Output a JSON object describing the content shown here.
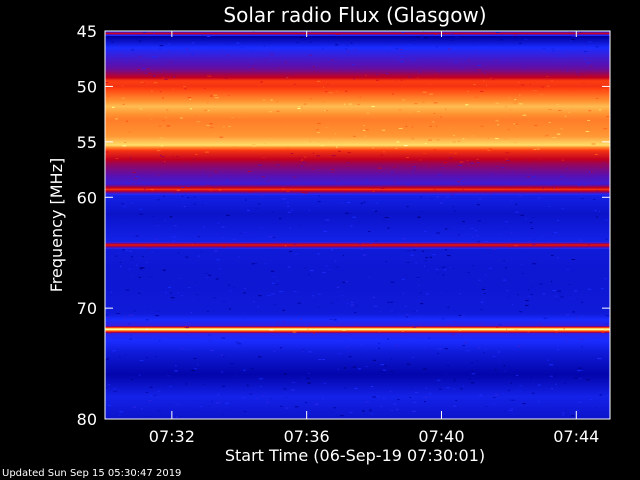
{
  "chart_data": {
    "type": "heatmap",
    "title": "Solar radio Flux (Glasgow)",
    "xlabel": "Start Time (06-Sep-19 07:30:01)",
    "ylabel": "Frequency [MHz]",
    "x_range": [
      "07:30:01",
      "07:45:00"
    ],
    "x_ticks": [
      "07:32",
      "07:36",
      "07:40",
      "07:44"
    ],
    "y_range": [
      45,
      80
    ],
    "y_axis_direction": "increasing downward",
    "y_ticks": [
      45,
      50,
      55,
      60,
      70,
      80
    ],
    "y_tick_labels": [
      "45",
      "50",
      "55",
      "60",
      "70",
      "80"
    ],
    "colormap": [
      "#000000",
      "#0000a0",
      "#1a2cff",
      "#5a10b0",
      "#c00020",
      "#ff4010",
      "#ff9030",
      "#ffff80",
      "#ffffff"
    ],
    "frequency_profile": [
      {
        "mhz": 45.0,
        "level": 0.1
      },
      {
        "mhz": 45.2,
        "level": 0.55
      },
      {
        "mhz": 45.5,
        "level": 0.12
      },
      {
        "mhz": 46.5,
        "level": 0.25
      },
      {
        "mhz": 47.5,
        "level": 0.33
      },
      {
        "mhz": 48.5,
        "level": 0.4
      },
      {
        "mhz": 49.2,
        "level": 0.5
      },
      {
        "mhz": 49.5,
        "level": 0.62
      },
      {
        "mhz": 50.0,
        "level": 0.6
      },
      {
        "mhz": 51.0,
        "level": 0.72
      },
      {
        "mhz": 51.8,
        "level": 0.8
      },
      {
        "mhz": 53.0,
        "level": 0.72
      },
      {
        "mhz": 54.5,
        "level": 0.76
      },
      {
        "mhz": 55.3,
        "level": 0.84
      },
      {
        "mhz": 55.8,
        "level": 0.6
      },
      {
        "mhz": 57.0,
        "level": 0.45
      },
      {
        "mhz": 58.8,
        "level": 0.32
      },
      {
        "mhz": 59.3,
        "level": 0.6
      },
      {
        "mhz": 59.8,
        "level": 0.22
      },
      {
        "mhz": 61.5,
        "level": 0.18
      },
      {
        "mhz": 64.0,
        "level": 0.22
      },
      {
        "mhz": 64.3,
        "level": 0.58
      },
      {
        "mhz": 64.7,
        "level": 0.2
      },
      {
        "mhz": 67.0,
        "level": 0.19
      },
      {
        "mhz": 70.5,
        "level": 0.2
      },
      {
        "mhz": 71.6,
        "level": 0.3
      },
      {
        "mhz": 71.9,
        "level": 0.95
      },
      {
        "mhz": 72.3,
        "level": 0.28
      },
      {
        "mhz": 74.0,
        "level": 0.2
      },
      {
        "mhz": 76.0,
        "level": 0.14
      },
      {
        "mhz": 78.0,
        "level": 0.22
      },
      {
        "mhz": 80.0,
        "level": 0.18
      }
    ]
  },
  "footer": {
    "updated": "Updated Sun Sep 15 05:30:47 2019"
  }
}
